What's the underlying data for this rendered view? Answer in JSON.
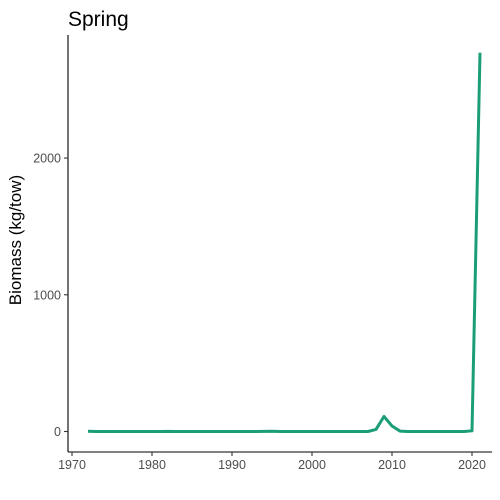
{
  "chart_data": {
    "type": "line",
    "title": "Spring",
    "xlabel": "",
    "ylabel": "Biomass (kg/tow)",
    "xlim": [
      1969.5,
      2022.5
    ],
    "ylim": [
      -150,
      2900
    ],
    "xticks": [
      1970,
      1980,
      1990,
      2000,
      2010,
      2020
    ],
    "yticks": [
      0,
      1000,
      2000
    ],
    "grid": false,
    "legend": "none",
    "colors": {
      "line": "#1b9e77",
      "axis": "#000000",
      "tick_text": "#4d4d4d"
    },
    "series": [
      {
        "x": [
          1972,
          1973,
          1974,
          1975,
          1976,
          1977,
          1978,
          1979,
          1980,
          1981,
          1982,
          1983,
          1984,
          1985,
          1986,
          1987,
          1988,
          1989,
          1990,
          1991,
          1992,
          1993,
          1994,
          1995,
          1996,
          1997,
          1998,
          1999,
          2000,
          2001,
          2002,
          2003,
          2004,
          2005,
          2006,
          2007,
          2008,
          2009,
          2010,
          2011,
          2012,
          2013,
          2014,
          2015,
          2016,
          2017,
          2018,
          2019,
          2020,
          2021
        ],
        "values": [
          2,
          0,
          0,
          0,
          0,
          0,
          0,
          0,
          0,
          0,
          1,
          0,
          0,
          0,
          0,
          0,
          0,
          0,
          0,
          0,
          0,
          0,
          1,
          2,
          0,
          0,
          0,
          0,
          0,
          0,
          0,
          0,
          0,
          0,
          0,
          0,
          15,
          110,
          40,
          3,
          0,
          0,
          0,
          0,
          0,
          0,
          0,
          0,
          5,
          2770
        ]
      }
    ]
  }
}
